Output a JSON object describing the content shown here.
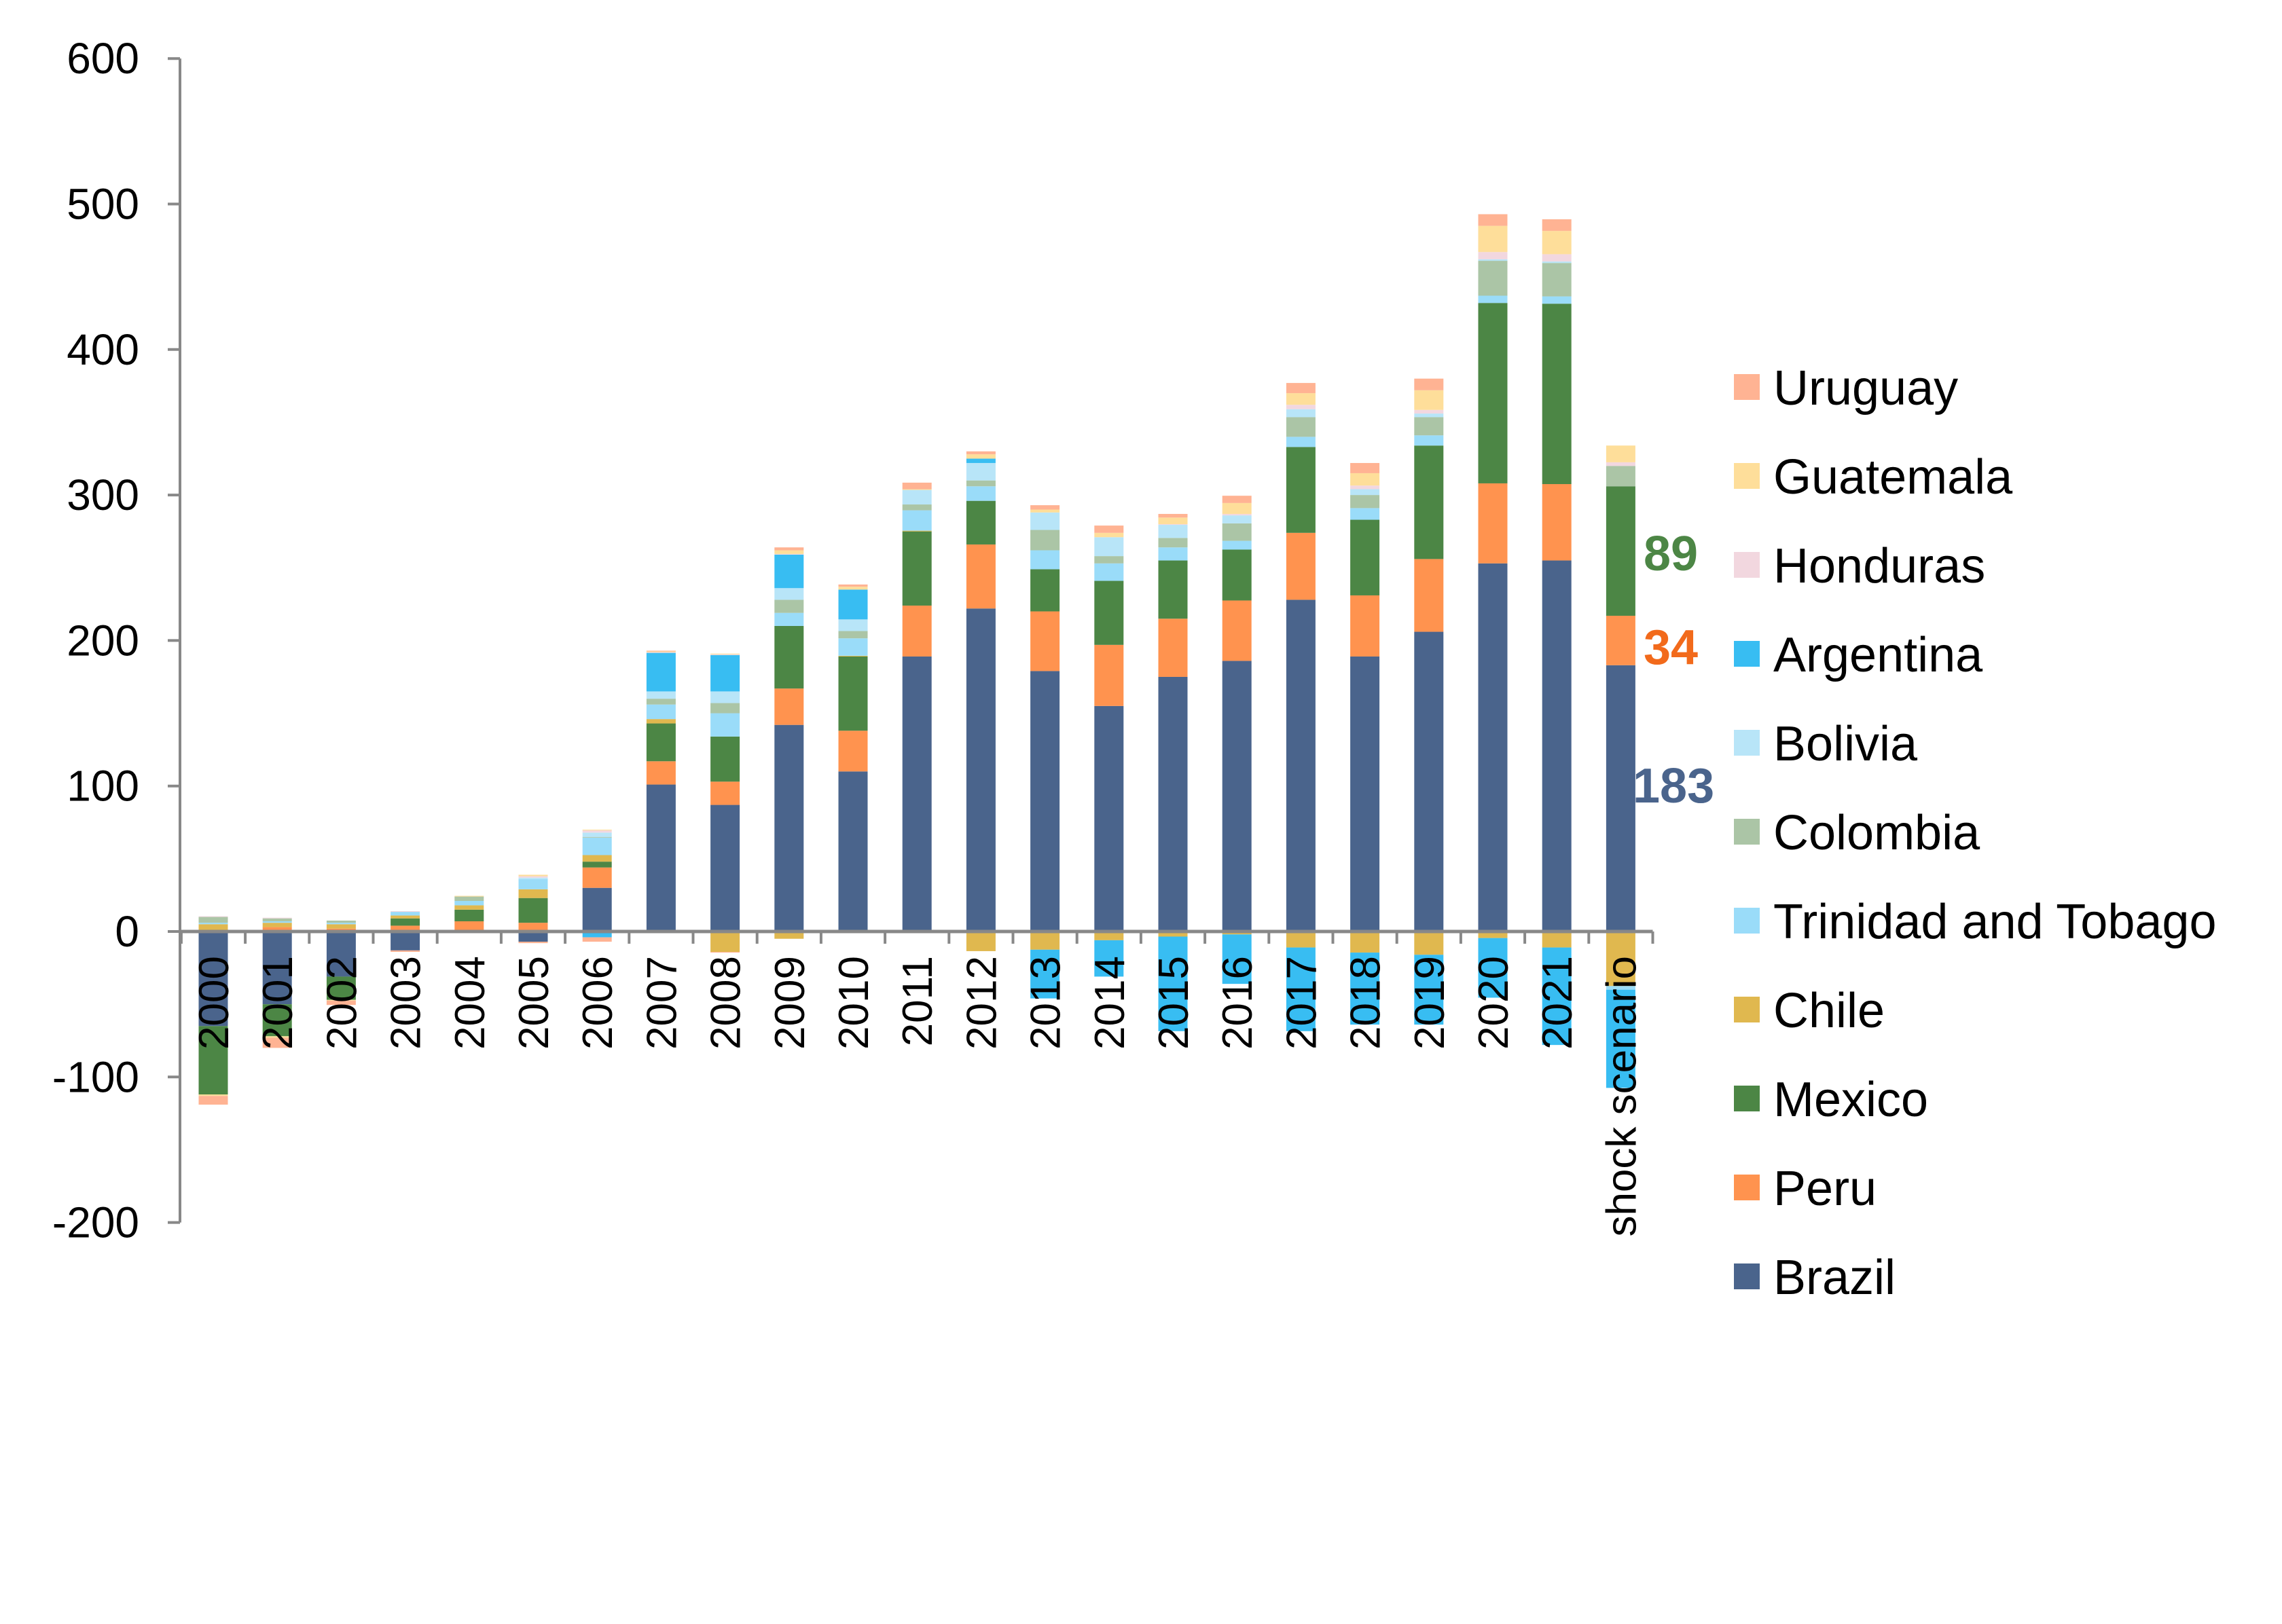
{
  "chart_data": {
    "type": "bar",
    "stacked": true,
    "title": "",
    "xlabel": "",
    "ylabel": "",
    "ylim": [
      -200,
      600
    ],
    "yticks": [
      "600",
      "500",
      "400",
      "300",
      "200",
      "100",
      "0",
      "-100",
      "-200"
    ],
    "grid": false,
    "legend_position": "right",
    "categories": [
      "2000",
      "2001",
      "2002",
      "2003",
      "2004",
      "2005",
      "2006",
      "2007",
      "2008",
      "2009",
      "2010",
      "2011",
      "2012",
      "2013",
      "2014",
      "2015",
      "2016",
      "2017",
      "2018",
      "2019",
      "2020",
      "2021",
      "shock scenario"
    ],
    "series": [
      {
        "name": "Brazil",
        "color": "#4A648C",
        "values": [
          -65,
          -50,
          -31,
          -13,
          0,
          -7,
          30,
          101,
          87,
          142,
          110,
          189,
          222,
          179,
          155,
          175,
          186,
          228,
          189,
          206,
          253,
          255,
          183
        ]
      },
      {
        "name": "Peru",
        "color": "#FF934F",
        "values": [
          1,
          3,
          2,
          4,
          7,
          6,
          14,
          16,
          16,
          25,
          28,
          35,
          44,
          41,
          42,
          40,
          41.5,
          46,
          42,
          50,
          55,
          52.5,
          34
        ]
      },
      {
        "name": "Mexico",
        "color": "#4C8645",
        "values": [
          -47,
          -22,
          -16,
          5,
          8,
          17,
          4,
          26,
          31,
          43,
          51,
          51,
          30,
          29,
          44,
          40,
          35,
          59,
          52,
          78,
          124,
          124,
          89
        ]
      },
      {
        "name": "Chile",
        "color": "#E0B84F",
        "values": [
          4,
          3,
          3,
          2,
          3,
          6,
          4.5,
          3,
          -14,
          -5,
          0.5,
          0.5,
          -13.5,
          -12.5,
          -6,
          -3.5,
          -2,
          -11,
          -14.5,
          -16,
          -4.5,
          -11,
          -37.5
        ]
      },
      {
        "name": "Trinidad and Tobago",
        "color": "#9ADCF9",
        "values": [
          1,
          1,
          1,
          2.5,
          3,
          7,
          12,
          10,
          16,
          9,
          12,
          14,
          10,
          13,
          12,
          9,
          6,
          7,
          8,
          7,
          5,
          5,
          -2.5
        ]
      },
      {
        "name": "Colombia",
        "color": "#ABC5A6",
        "values": [
          4,
          2,
          1.5,
          0,
          3,
          0,
          0.5,
          4,
          7,
          9,
          5,
          4,
          4,
          14,
          5,
          6.5,
          12,
          13.5,
          9,
          12.5,
          24,
          23,
          14
        ]
      },
      {
        "name": "Bolivia",
        "color": "#B8E5F8",
        "values": [
          0,
          0,
          0,
          0,
          0,
          1,
          3,
          5,
          8,
          8,
          8,
          10,
          12,
          12,
          13,
          9,
          5.5,
          5.5,
          4,
          2.5,
          1,
          1,
          0
        ]
      },
      {
        "name": "Argentina",
        "color": "#38BDF2",
        "values": [
          0,
          0,
          0,
          0,
          0,
          0,
          -4,
          26.5,
          25,
          23,
          20.5,
          0,
          3,
          -33.5,
          -25,
          -65,
          -34,
          -57.5,
          -49.5,
          -48,
          -41,
          -67,
          -67.5
        ]
      },
      {
        "name": "Honduras",
        "color": "#F2D7DF",
        "values": [
          0.5,
          0.5,
          0,
          0.5,
          0,
          1,
          1.5,
          0.5,
          0.5,
          0.5,
          0,
          0,
          0,
          0,
          0,
          0.5,
          1,
          3,
          2.5,
          2.5,
          5,
          5,
          2.5
        ]
      },
      {
        "name": "Guatemala",
        "color": "#FEDE9A",
        "values": [
          -1,
          -1,
          -0.5,
          0,
          0.5,
          1,
          0.5,
          0.5,
          0.5,
          2.5,
          2,
          0.5,
          3,
          2,
          3,
          4.5,
          7.5,
          8,
          8.5,
          13.5,
          18,
          16,
          11.5
        ]
      },
      {
        "name": "Uruguay",
        "color": "#FFB393",
        "values": [
          -6,
          -7,
          -3,
          -1,
          -0.5,
          -1,
          -3,
          0.5,
          -0.5,
          2,
          1.5,
          4.5,
          2,
          3,
          5,
          2.5,
          5,
          7,
          7,
          8,
          8,
          8,
          0
        ]
      }
    ],
    "legend_order": [
      "Uruguay",
      "Guatemala",
      "Honduras",
      "Argentina",
      "Bolivia",
      "Colombia",
      "Trinidad and Tobago",
      "Chile",
      "Mexico",
      "Peru",
      "Brazil"
    ],
    "annotations": [
      {
        "text": "89",
        "series": "Mexico",
        "color": "#4C8645"
      },
      {
        "text": "34",
        "series": "Peru",
        "color": "#F26A1B"
      },
      {
        "text": "183",
        "series": "Brazil",
        "color": "#4A648C"
      }
    ]
  }
}
